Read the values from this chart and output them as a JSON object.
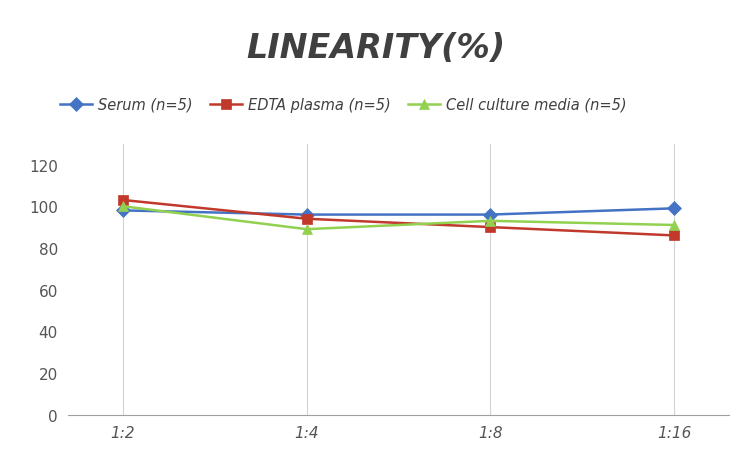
{
  "title": "LINEARITY(%)",
  "x_labels": [
    "1:2",
    "1:4",
    "1:8",
    "1:16"
  ],
  "x_positions": [
    0,
    1,
    2,
    3
  ],
  "series": [
    {
      "label": "Serum (n=5)",
      "values": [
        98,
        96,
        96,
        99
      ],
      "color": "#4472C4",
      "marker": "D",
      "markersize": 7,
      "linewidth": 1.8
    },
    {
      "label": "EDTA plasma (n=5)",
      "values": [
        103,
        94,
        90,
        86
      ],
      "color": "#C0392B",
      "marker": "s",
      "markersize": 7,
      "linewidth": 1.8
    },
    {
      "label": "Cell culture media (n=5)",
      "values": [
        100,
        89,
        93,
        91
      ],
      "color": "#92D050",
      "marker": "^",
      "markersize": 7,
      "linewidth": 1.8
    }
  ],
  "ylim": [
    0,
    130
  ],
  "yticks": [
    0,
    20,
    40,
    60,
    80,
    100,
    120
  ],
  "bg_color": "#FFFFFF",
  "grid_color": "#D3D3D3",
  "title_fontsize": 24,
  "legend_fontsize": 10.5,
  "tick_fontsize": 11
}
